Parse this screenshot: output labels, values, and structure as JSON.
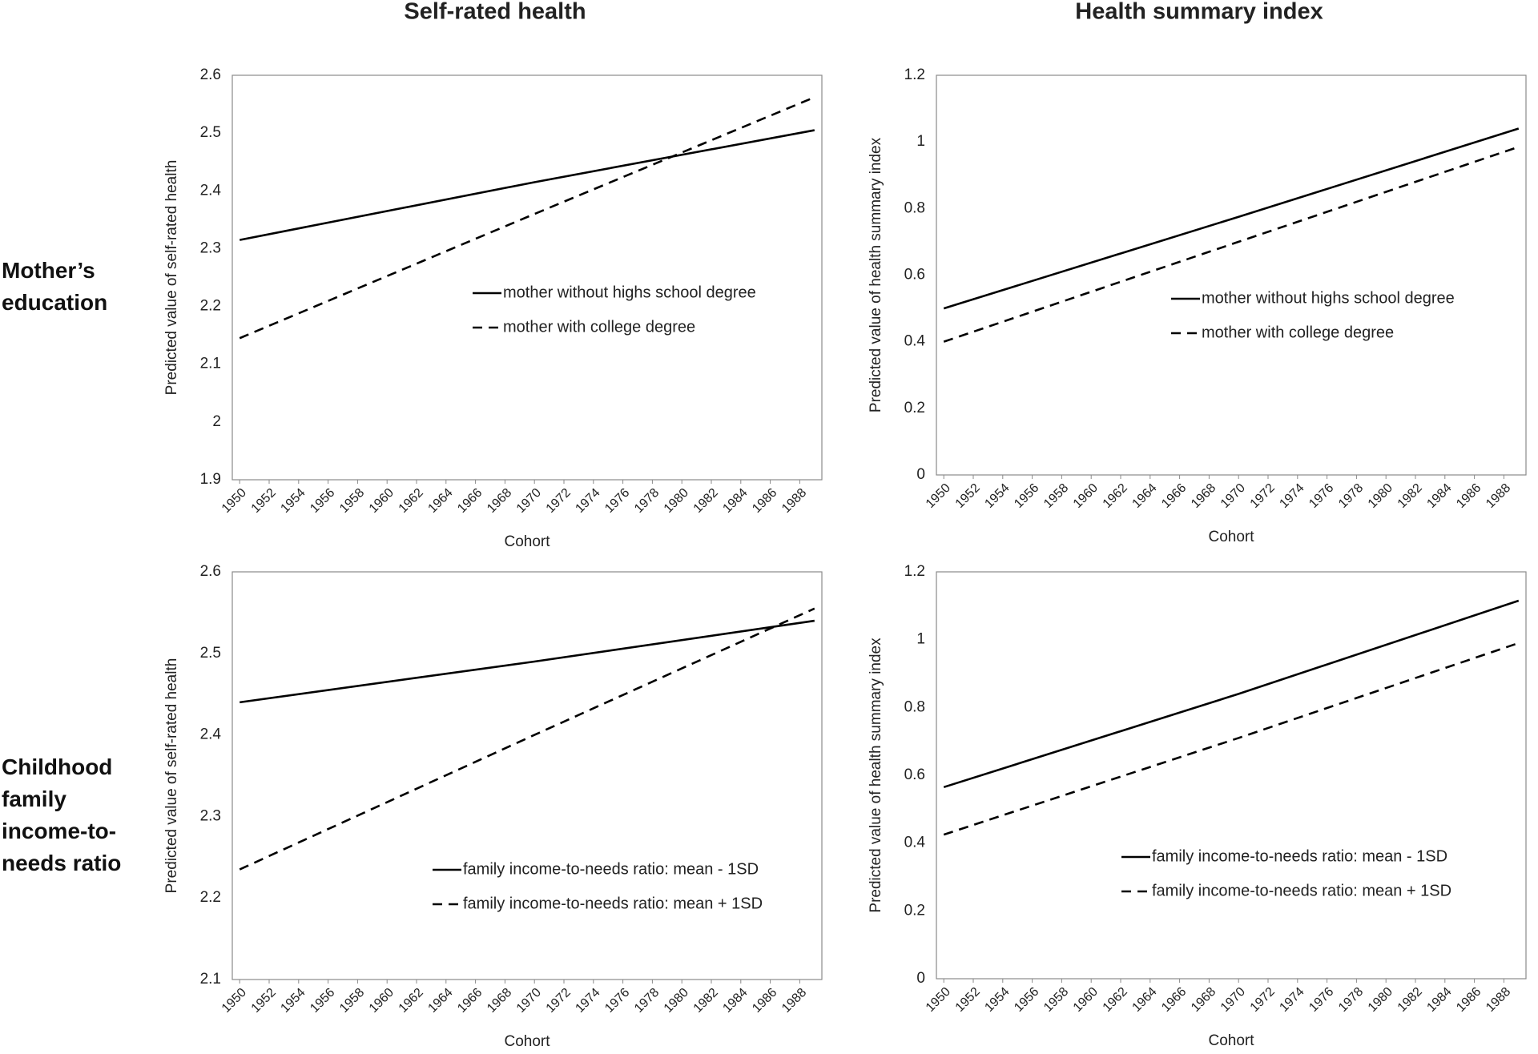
{
  "column_titles": [
    "Self-rated health",
    "Health summary index"
  ],
  "row_labels": [
    "Mother’s education",
    "Childhood family income-to-needs ratio"
  ],
  "chart_data": [
    {
      "type": "line",
      "y_label": "Predicted value of self-rated health",
      "x_label": "Cohort",
      "x": [
        1950,
        1970,
        1989
      ],
      "xlim": [
        1949.5,
        1989.5
      ],
      "xticks": [
        1950,
        1952,
        1954,
        1956,
        1958,
        1960,
        1962,
        1964,
        1966,
        1968,
        1970,
        1972,
        1974,
        1976,
        1978,
        1980,
        1982,
        1984,
        1986,
        1988
      ],
      "ylim": [
        1.9,
        2.6
      ],
      "yticks": [
        1.9,
        2,
        2.1,
        2.2,
        2.3,
        2.4,
        2.5,
        2.6
      ],
      "series": [
        {
          "name": "mother without highs school degree",
          "color": "#000000",
          "dashed": false,
          "values": [
            2.315,
            2.415,
            2.505
          ]
        },
        {
          "name": "mother with college degree",
          "color": "#000000",
          "dashed": true,
          "values": [
            2.145,
            2.36,
            2.562
          ]
        }
      ]
    },
    {
      "type": "line",
      "y_label": "Predicted value of health summary index",
      "x_label": "Cohort",
      "x": [
        1950,
        1970,
        1989
      ],
      "xlim": [
        1949.5,
        1989.5
      ],
      "xticks": [
        1950,
        1952,
        1954,
        1956,
        1958,
        1960,
        1962,
        1964,
        1966,
        1968,
        1970,
        1972,
        1974,
        1976,
        1978,
        1980,
        1982,
        1984,
        1986,
        1988
      ],
      "ylim": [
        0,
        1.2
      ],
      "yticks": [
        0,
        0.2,
        0.4,
        0.6,
        0.8,
        1,
        1.2
      ],
      "series": [
        {
          "name": "mother without highs school degree",
          "color": "#000000",
          "dashed": false,
          "values": [
            0.5,
            0.775,
            1.04
          ]
        },
        {
          "name": "mother with college degree",
          "color": "#000000",
          "dashed": true,
          "values": [
            0.4,
            0.7,
            0.985
          ]
        }
      ]
    },
    {
      "type": "line",
      "y_label": "Predicted value of self-rated health",
      "x_label": "Cohort",
      "x": [
        1950,
        1970,
        1989
      ],
      "xlim": [
        1949.5,
        1989.5
      ],
      "xticks": [
        1950,
        1952,
        1954,
        1956,
        1958,
        1960,
        1962,
        1964,
        1966,
        1968,
        1970,
        1972,
        1974,
        1976,
        1978,
        1980,
        1982,
        1984,
        1986,
        1988
      ],
      "ylim": [
        2.1,
        2.6
      ],
      "yticks": [
        2.1,
        2.2,
        2.3,
        2.4,
        2.5,
        2.6
      ],
      "series": [
        {
          "name": "family income-to-needs ratio: mean - 1SD",
          "color": "#000000",
          "dashed": false,
          "values": [
            2.44,
            2.49,
            2.54
          ]
        },
        {
          "name": "family income-to-needs ratio: mean + 1SD",
          "color": "#000000",
          "dashed": true,
          "values": [
            2.235,
            2.4,
            2.555
          ]
        }
      ]
    },
    {
      "type": "line",
      "y_label": "Predicted value of health summary index",
      "x_label": "Cohort",
      "x": [
        1950,
        1970,
        1989
      ],
      "xlim": [
        1949.5,
        1989.5
      ],
      "xticks": [
        1950,
        1952,
        1954,
        1956,
        1958,
        1960,
        1962,
        1964,
        1966,
        1968,
        1970,
        1972,
        1974,
        1976,
        1978,
        1980,
        1982,
        1984,
        1986,
        1988
      ],
      "ylim": [
        0,
        1.2
      ],
      "yticks": [
        0,
        0.2,
        0.4,
        0.6,
        0.8,
        1,
        1.2
      ],
      "series": [
        {
          "name": "family income-to-needs ratio: mean - 1SD",
          "color": "#000000",
          "dashed": false,
          "values": [
            0.565,
            0.84,
            1.115
          ]
        },
        {
          "name": "family income-to-needs ratio: mean + 1SD",
          "color": "#000000",
          "dashed": true,
          "values": [
            0.425,
            0.71,
            0.99
          ]
        }
      ]
    }
  ]
}
